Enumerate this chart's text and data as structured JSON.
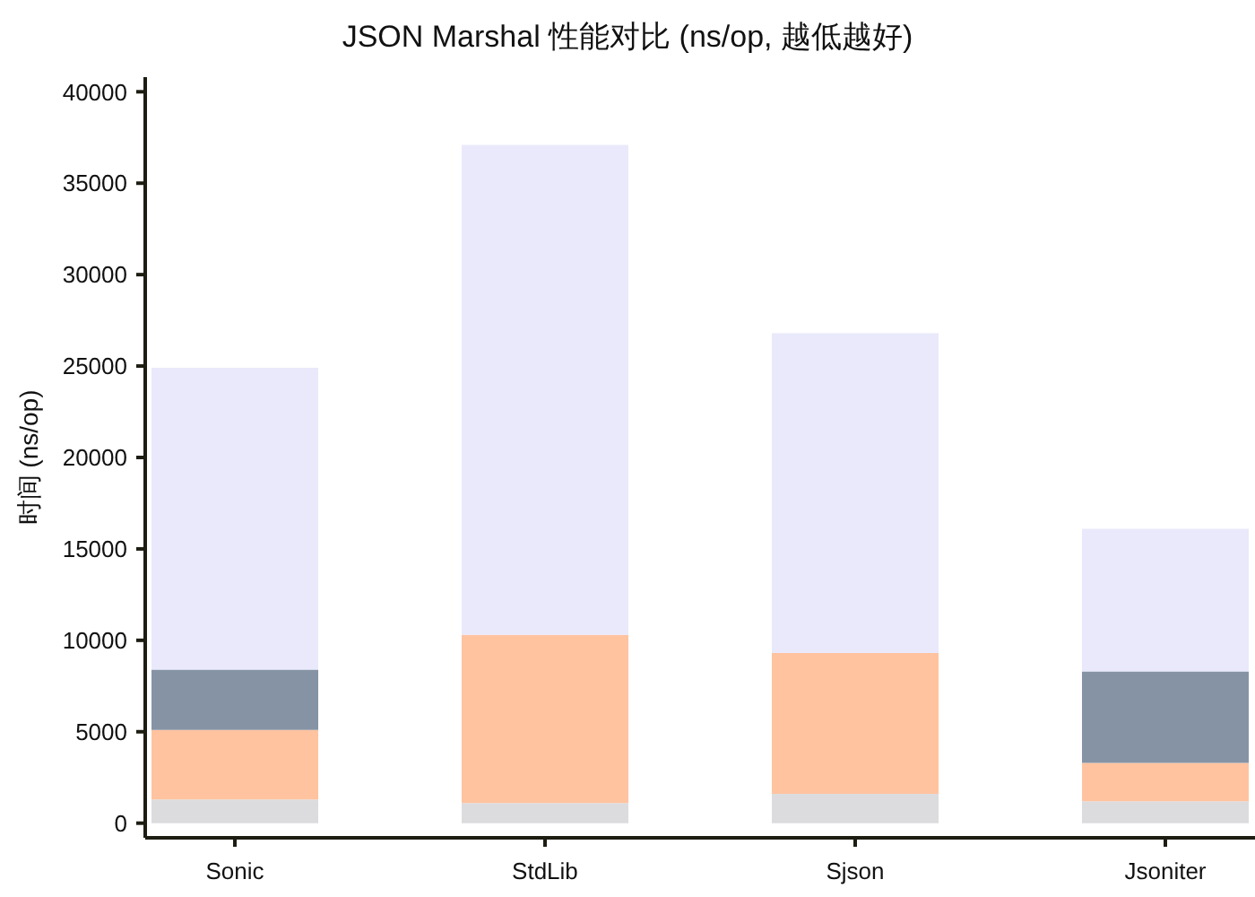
{
  "chart_data": {
    "type": "bar",
    "title": "JSON Marshal 性能对比 (ns/op, 越低越好)",
    "ylabel": "时间 (ns/op)",
    "categories": [
      "Sonic",
      "StdLib",
      "Sjson",
      "Jsoniter"
    ],
    "stacked": true,
    "series": [
      {
        "color": "#dcdcde",
        "values": [
          1300,
          1100,
          1600,
          1200
        ]
      },
      {
        "color": "#ffc3a0",
        "values": [
          3800,
          9200,
          7700,
          2100
        ]
      },
      {
        "color": "#8693a5",
        "values": [
          3300,
          null,
          null,
          5000
        ]
      },
      {
        "color": "#e9e9fb",
        "values": [
          16500,
          26800,
          17500,
          7800
        ]
      }
    ],
    "ylim": [
      -800,
      40800
    ],
    "yticks": [
      0,
      5000,
      10000,
      15000,
      20000,
      25000,
      30000,
      35000,
      40000
    ]
  }
}
